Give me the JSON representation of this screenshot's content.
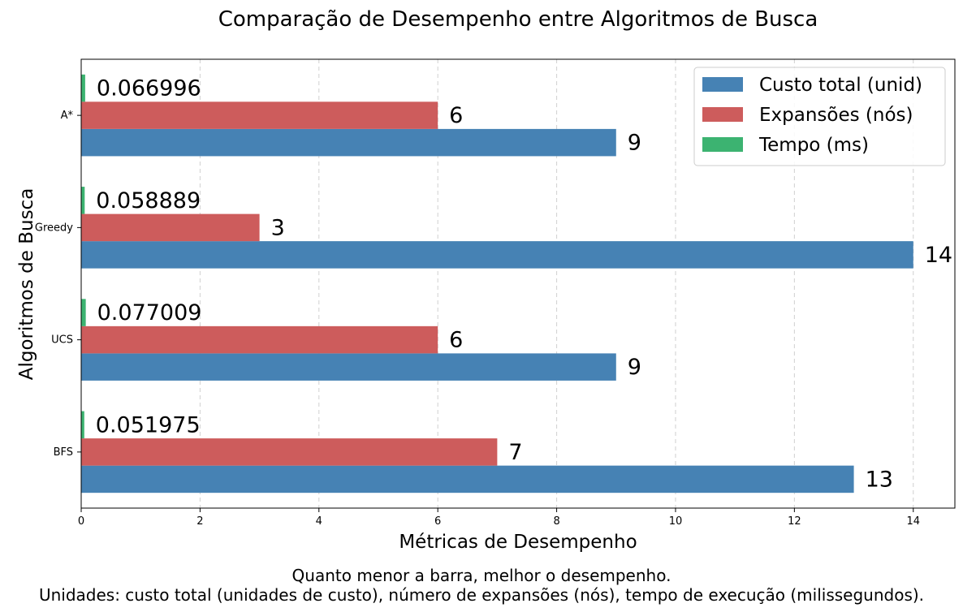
{
  "chart_data": {
    "type": "bar",
    "orientation": "horizontal",
    "title": "Comparação de Desempenho entre Algoritmos de Busca",
    "xlabel": "Métricas de Desempenho",
    "ylabel": "Algoritmos de Busca",
    "categories": [
      "BFS",
      "UCS",
      "Greedy",
      "A*"
    ],
    "xlim": [
      0,
      14.7
    ],
    "xticks": [
      0,
      2,
      4,
      6,
      8,
      10,
      12,
      14
    ],
    "grid": "x dashed",
    "legend_position": "top-right",
    "series": [
      {
        "name": "Custo total (unid)",
        "color": "#4682b4",
        "values": [
          13,
          9,
          14,
          9
        ],
        "labels": [
          "13",
          "9",
          "14",
          "9"
        ]
      },
      {
        "name": "Expansões (nós)",
        "color": "#cd5c5c",
        "values": [
          7,
          6,
          3,
          6
        ],
        "labels": [
          "7",
          "6",
          "3",
          "6"
        ]
      },
      {
        "name": "Tempo (ms)",
        "color": "#3cb371",
        "values": [
          0.051975,
          0.077009,
          0.058889,
          0.066996
        ],
        "labels": [
          "0.051975",
          "0.077009",
          "0.058889",
          "0.066996"
        ]
      }
    ]
  },
  "footer": {
    "line1": "Quanto menor a barra, melhor o desempenho.",
    "line2": "Unidades: custo total (unidades de custo), número de expansões (nós), tempo de execução (milissegundos)."
  }
}
